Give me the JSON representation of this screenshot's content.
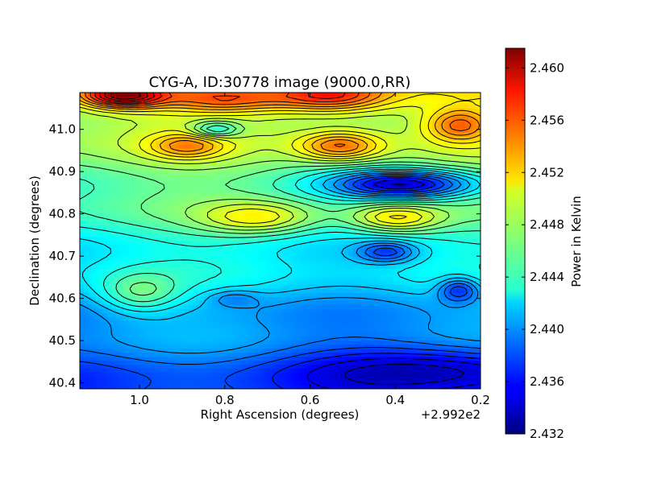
{
  "chart_data": {
    "type": "heatmap",
    "title": "CYG-A, ID:30778 image (9000.0,RR)",
    "xlabel": "Right Ascension (degrees)",
    "ylabel": "Declination (degrees)",
    "x_offset_label": "+2.992e2",
    "xlim": [
      1.14,
      0.2
    ],
    "ylim": [
      40.386,
      41.087
    ],
    "x_ticks": [
      1.0,
      0.8,
      0.6,
      0.4,
      0.2
    ],
    "x_tick_labels": [
      "1.0",
      "0.8",
      "0.6",
      "0.4",
      "0.2"
    ],
    "y_ticks": [
      40.4,
      40.5,
      40.6,
      40.7,
      40.8,
      40.9,
      41.0
    ],
    "y_tick_labels": [
      "40.4",
      "40.5",
      "40.6",
      "40.7",
      "40.8",
      "40.9",
      "41.0"
    ],
    "colorbar": {
      "label": "Power in Kelvin",
      "range": [
        2.432,
        2.4615
      ],
      "ticks": [
        2.432,
        2.436,
        2.44,
        2.444,
        2.448,
        2.452,
        2.456,
        2.46
      ],
      "tick_labels": [
        "2.432",
        "2.436",
        "2.440",
        "2.444",
        "2.448",
        "2.452",
        "2.456",
        "2.460"
      ],
      "colormap": "jet"
    },
    "features": [
      {
        "x": 1.04,
        "y": 41.08,
        "value": 2.4615,
        "extent": [
          0.1,
          0.03
        ],
        "kind": "max"
      },
      {
        "x": 0.55,
        "y": 41.08,
        "value": 2.458,
        "extent": [
          0.14,
          0.04
        ],
        "kind": "max"
      },
      {
        "x": 0.8,
        "y": 41.07,
        "value": 2.455,
        "extent": [
          0.15,
          0.03
        ],
        "kind": "max"
      },
      {
        "x": 0.25,
        "y": 41.01,
        "value": 2.455,
        "extent": [
          0.08,
          0.04
        ],
        "kind": "max"
      },
      {
        "x": 0.53,
        "y": 40.96,
        "value": 2.455,
        "extent": [
          0.1,
          0.035
        ],
        "kind": "max"
      },
      {
        "x": 0.89,
        "y": 40.96,
        "value": 2.453,
        "extent": [
          0.09,
          0.03
        ],
        "kind": "max"
      },
      {
        "x": 0.4,
        "y": 40.79,
        "value": 2.451,
        "extent": [
          0.11,
          0.035
        ],
        "kind": "max"
      },
      {
        "x": 0.72,
        "y": 40.79,
        "value": 2.45,
        "extent": [
          0.14,
          0.04
        ],
        "kind": "max"
      },
      {
        "x": 0.38,
        "y": 40.87,
        "value": 2.435,
        "extent": [
          0.18,
          0.035
        ],
        "kind": "min"
      },
      {
        "x": 0.42,
        "y": 40.71,
        "value": 2.438,
        "extent": [
          0.07,
          0.025
        ],
        "kind": "min"
      },
      {
        "x": 0.25,
        "y": 40.62,
        "value": 2.436,
        "extent": [
          0.05,
          0.03
        ],
        "kind": "min"
      },
      {
        "x": 0.3,
        "y": 40.43,
        "value": 2.434,
        "extent": [
          0.3,
          0.06
        ],
        "kind": "min"
      },
      {
        "x": 0.78,
        "y": 40.6,
        "value": 2.439,
        "extent": [
          0.06,
          0.02
        ],
        "kind": "min"
      },
      {
        "x": 0.82,
        "y": 41.0,
        "value": 2.443,
        "extent": [
          0.06,
          0.02
        ],
        "kind": "min"
      },
      {
        "x": 1.0,
        "y": 40.61,
        "value": 2.446,
        "extent": [
          0.1,
          0.05
        ],
        "kind": "max"
      }
    ]
  }
}
